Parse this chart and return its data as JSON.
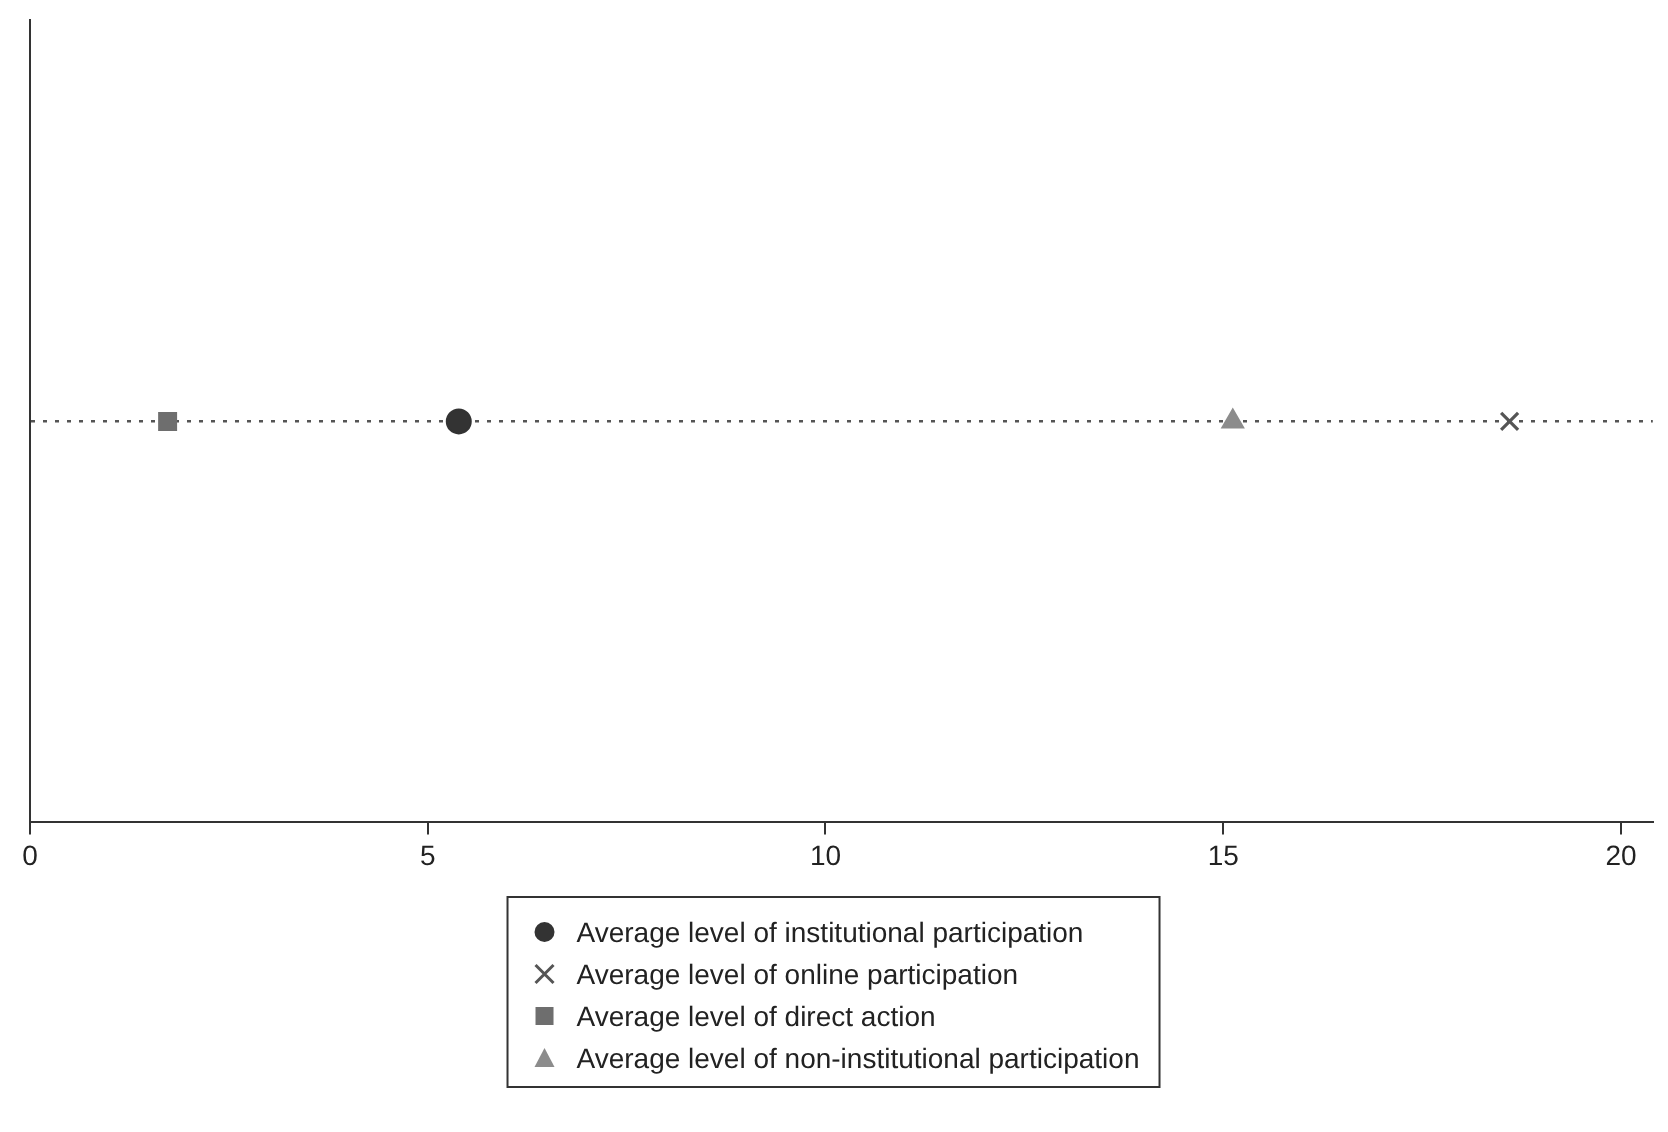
{
  "chart_data": {
    "type": "scatter",
    "orientation": "horizontal",
    "categories": [
      null
    ],
    "xlim": [
      0,
      20.4
    ],
    "xticks": [
      0,
      5,
      10,
      15,
      20
    ],
    "legend": "bottom",
    "series": [
      {
        "name": "Average level of institutional participation",
        "color": "#333333",
        "marker": "circle",
        "values": [
          5.39
        ]
      },
      {
        "name": "Average level of online participation",
        "color": "#555555",
        "marker": "cross",
        "values": [
          18.6
        ]
      },
      {
        "name": "Average level of direct action",
        "color": "#6e6e6e",
        "marker": "square",
        "values": [
          1.73
        ]
      },
      {
        "name": "Average level of non-institutional participation",
        "color": "#8c8c8c",
        "marker": "triangle",
        "values": [
          15.12
        ]
      }
    ]
  }
}
